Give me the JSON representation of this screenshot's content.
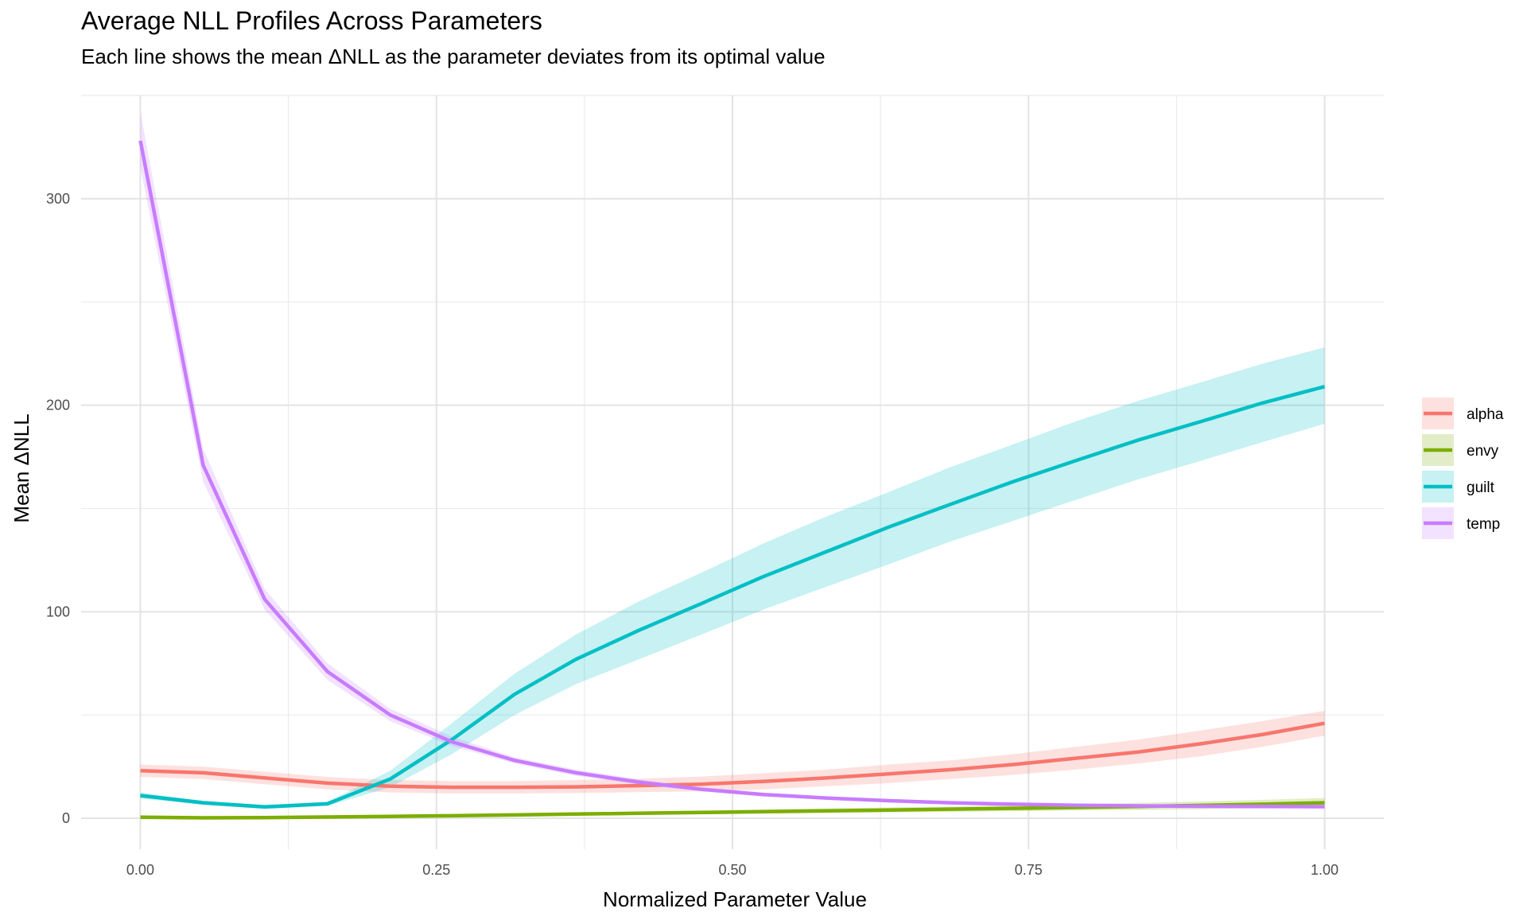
{
  "chart_data": {
    "type": "line",
    "title": "Average NLL Profiles Across Parameters",
    "subtitle": "Each line shows the mean ΔNLL as the parameter deviates from its optimal value",
    "xlabel": "Normalized Parameter Value",
    "ylabel": "Mean ΔNLL",
    "xlim": [
      -0.05,
      1.05
    ],
    "ylim": [
      -15,
      350
    ],
    "x_ticks": [
      0,
      0.25,
      0.5,
      0.75,
      1.0
    ],
    "x_tick_labels": [
      "0.00",
      "0.25",
      "0.50",
      "0.75",
      "1.00"
    ],
    "y_ticks": [
      0,
      100,
      200,
      300
    ],
    "y_tick_labels": [
      "0",
      "100",
      "200",
      "300"
    ],
    "grid": true,
    "legend_position": "right",
    "series": [
      {
        "name": "alpha",
        "color": "#F8766D",
        "x": [
          0,
          0.053,
          0.105,
          0.158,
          0.211,
          0.263,
          0.316,
          0.368,
          0.421,
          0.474,
          0.526,
          0.579,
          0.632,
          0.684,
          0.737,
          0.789,
          0.842,
          0.895,
          0.947,
          1.0
        ],
        "y": [
          23,
          22,
          19.5,
          17,
          15.5,
          15,
          15,
          15.2,
          15.8,
          16.5,
          17.8,
          19.5,
          21.5,
          23.5,
          26,
          29,
          32,
          36,
          40.5,
          46
        ],
        "lower": [
          20,
          19,
          16.5,
          14,
          12.5,
          12,
          12,
          12.2,
          12.6,
          13,
          14,
          15.5,
          17,
          19,
          21,
          23.5,
          26.5,
          30,
          34.5,
          40
        ],
        "upper": [
          26,
          25,
          22.5,
          20,
          18.5,
          18,
          18,
          18.5,
          19.2,
          20.2,
          21.8,
          23.5,
          26,
          28,
          31,
          34.5,
          38,
          42.5,
          47,
          52
        ]
      },
      {
        "name": "envy",
        "color": "#7CAE00",
        "x": [
          0,
          0.053,
          0.105,
          0.158,
          0.211,
          0.263,
          0.316,
          0.368,
          0.421,
          0.474,
          0.526,
          0.579,
          0.632,
          0.684,
          0.737,
          0.789,
          0.842,
          0.895,
          0.947,
          1.0
        ],
        "y": [
          0.5,
          0.2,
          0.3,
          0.6,
          0.9,
          1.2,
          1.6,
          2.0,
          2.4,
          2.8,
          3.2,
          3.6,
          4.0,
          4.4,
          4.8,
          5.2,
          5.7,
          6.2,
          6.8,
          7.5
        ],
        "lower": [
          0,
          0,
          0,
          0.2,
          0.4,
          0.7,
          1.0,
          1.3,
          1.6,
          1.9,
          2.2,
          2.5,
          2.8,
          3.1,
          3.4,
          3.7,
          4.0,
          4.4,
          4.8,
          5.2
        ],
        "upper": [
          1.0,
          0.6,
          0.7,
          1.0,
          1.4,
          1.8,
          2.2,
          2.7,
          3.2,
          3.7,
          4.2,
          4.7,
          5.2,
          5.7,
          6.2,
          6.8,
          7.4,
          8.1,
          8.9,
          9.8
        ]
      },
      {
        "name": "guilt",
        "color": "#00BFC4",
        "x": [
          0,
          0.053,
          0.105,
          0.158,
          0.211,
          0.263,
          0.316,
          0.368,
          0.421,
          0.474,
          0.526,
          0.579,
          0.632,
          0.684,
          0.737,
          0.789,
          0.842,
          0.895,
          0.947,
          1.0
        ],
        "y": [
          11,
          7.5,
          5.5,
          7,
          19,
          38,
          60,
          77,
          91,
          104,
          117,
          129,
          141,
          152,
          163,
          173,
          183,
          192,
          201,
          209
        ],
        "lower": [
          9.5,
          6.5,
          4.5,
          6,
          15,
          31,
          50,
          65,
          77,
          89,
          101,
          112,
          123,
          134,
          144,
          154,
          164,
          173,
          182,
          191
        ],
        "upper": [
          12.5,
          8.5,
          6.5,
          8,
          23,
          46,
          70,
          89,
          105,
          119,
          133,
          146,
          158,
          170,
          181,
          192,
          202,
          211,
          220,
          228
        ]
      },
      {
        "name": "temp",
        "color": "#C77CFF",
        "x": [
          0,
          0.053,
          0.105,
          0.158,
          0.211,
          0.263,
          0.316,
          0.368,
          0.421,
          0.474,
          0.526,
          0.579,
          0.632,
          0.684,
          0.737,
          0.789,
          0.842,
          0.895,
          0.947,
          1.0
        ],
        "y": [
          328,
          171,
          106,
          71,
          50,
          37,
          28,
          22,
          17.5,
          14,
          11.5,
          9.8,
          8.5,
          7.5,
          6.8,
          6.3,
          6.0,
          5.8,
          5.7,
          5.6
        ],
        "lower": [
          315,
          163,
          101,
          67,
          47,
          35,
          26.5,
          20.5,
          16.3,
          13,
          10.6,
          9,
          7.8,
          6.9,
          6.2,
          5.8,
          5.5,
          5.3,
          5.2,
          5.1
        ],
        "upper": [
          342,
          179,
          111,
          75,
          53,
          39.5,
          29.5,
          23.5,
          18.8,
          15,
          12.4,
          10.6,
          9.2,
          8.1,
          7.4,
          6.8,
          6.5,
          6.3,
          6.2,
          6.1
        ]
      }
    ]
  }
}
